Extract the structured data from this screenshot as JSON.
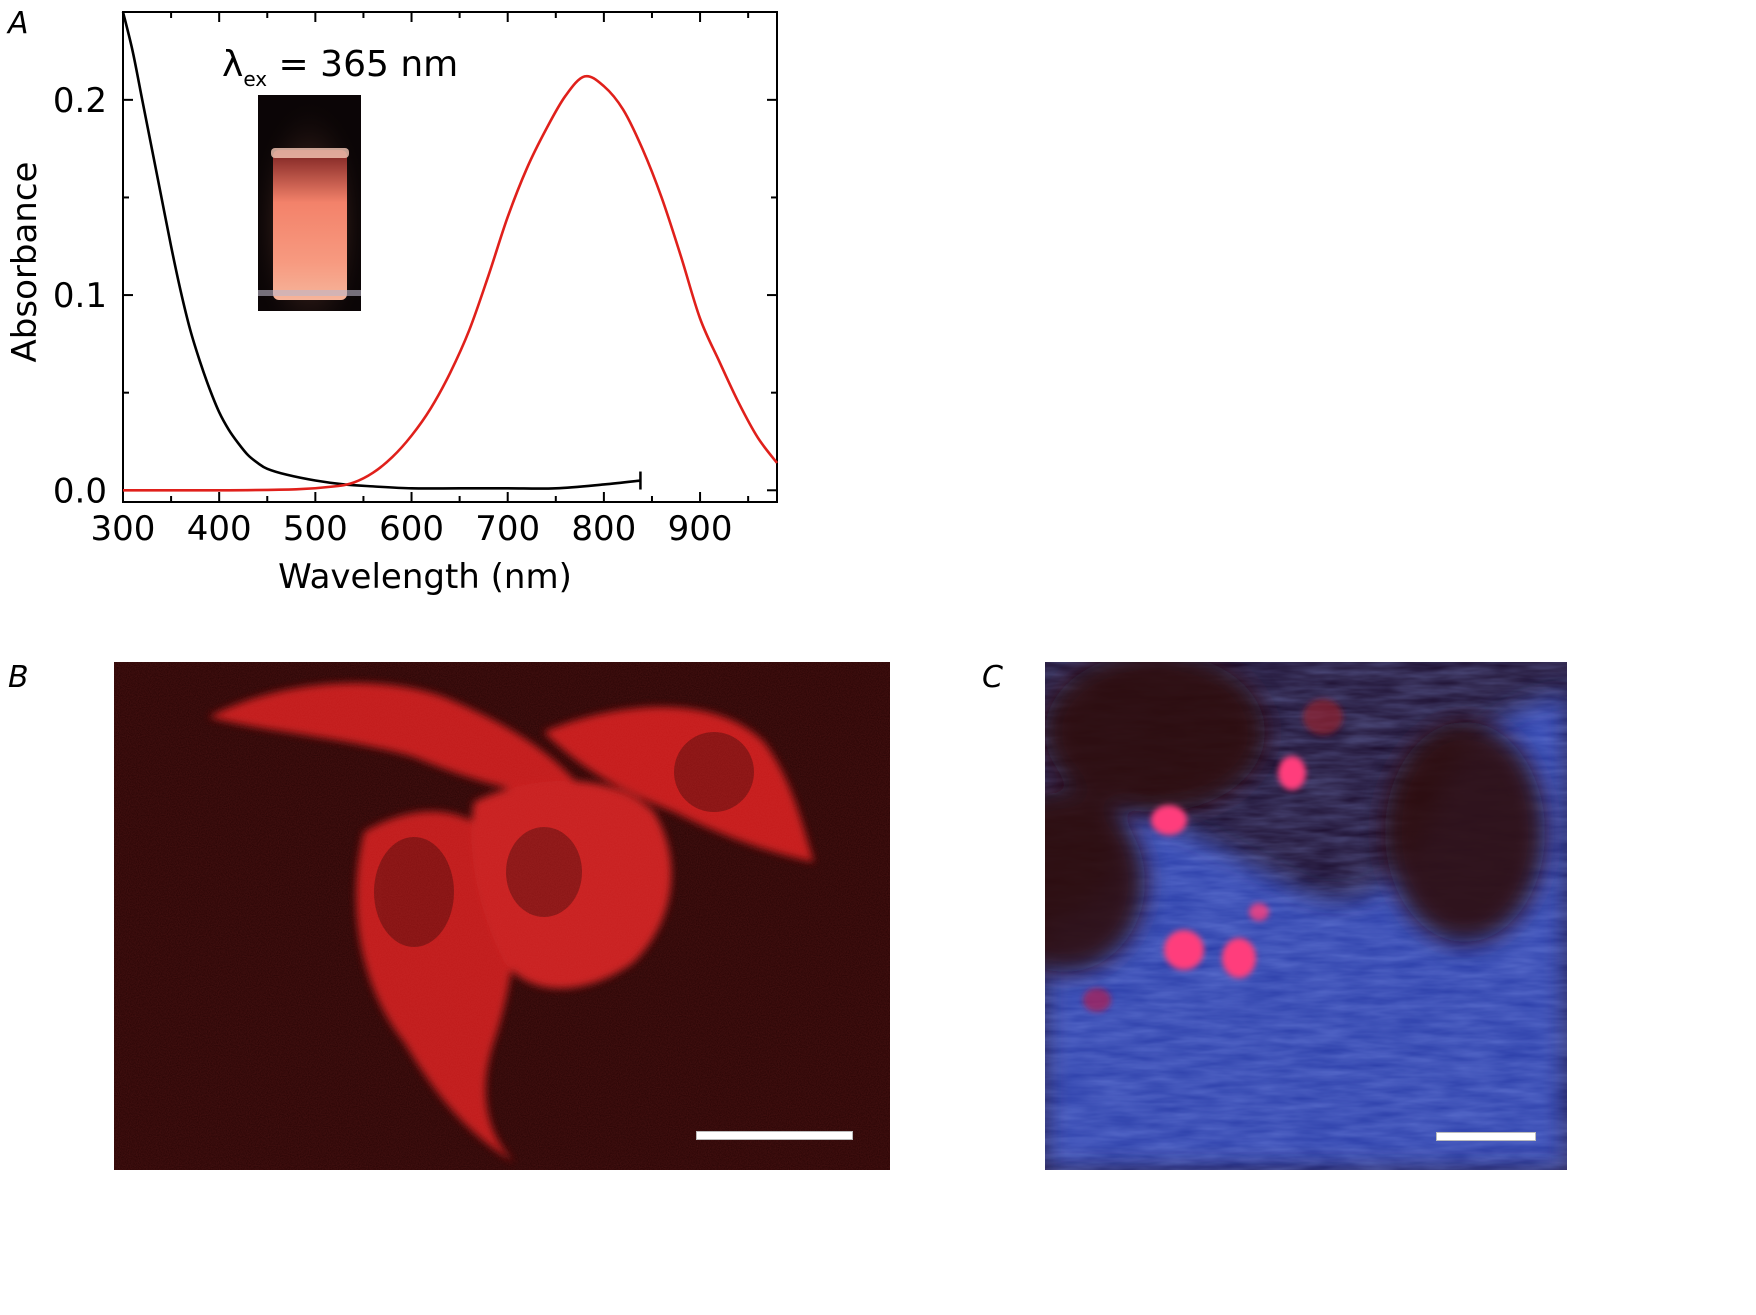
{
  "panels": {
    "a_label": "A",
    "b_label": "B",
    "c_label": "C"
  },
  "inset": {
    "lambda": "λ",
    "subscript": "ex",
    "rest": " = 365 nm"
  },
  "colors": {
    "absorbance": "#000000",
    "emission": "#e0201b",
    "micro_b_bg": "#2a0505",
    "micro_b_cells": "#d81e1e",
    "micro_c_bg": "#1c0a24",
    "micro_c_blue": "#3a5ad8",
    "micro_c_pink": "#ff3a7a"
  },
  "chart_data": {
    "type": "line",
    "title": "",
    "xlabel": "Wavelength (nm)",
    "ylabel": "Absorbance",
    "xlim": [
      300,
      980
    ],
    "ylim": [
      -0.006,
      0.245
    ],
    "xticks": [
      300,
      400,
      500,
      600,
      700,
      800,
      900
    ],
    "xtick_labels": [
      "300",
      "400",
      "500",
      "600",
      "700",
      "800",
      "900"
    ],
    "yticks": [
      0.0,
      0.1,
      0.2
    ],
    "ytick_labels": [
      "0.0",
      "0.1",
      "0.2"
    ],
    "grid": false,
    "series": [
      {
        "color": "#000000",
        "x": [
          300,
          310,
          320,
          330,
          340,
          350,
          360,
          370,
          380,
          390,
          400,
          410,
          420,
          430,
          440,
          450,
          470,
          500,
          530,
          560,
          600,
          650,
          700,
          750,
          800,
          838
        ],
        "y": [
          0.245,
          0.225,
          0.2,
          0.175,
          0.15,
          0.125,
          0.102,
          0.082,
          0.066,
          0.052,
          0.04,
          0.031,
          0.024,
          0.018,
          0.014,
          0.011,
          0.008,
          0.005,
          0.003,
          0.002,
          0.001,
          0.001,
          0.001,
          0.001,
          0.003,
          0.005
        ]
      },
      {
        "color": "#e0201b",
        "x": [
          300,
          400,
          480,
          520,
          540,
          560,
          580,
          600,
          620,
          640,
          660,
          680,
          700,
          720,
          740,
          760,
          780,
          800,
          820,
          840,
          860,
          880,
          900,
          920,
          940,
          960,
          980
        ],
        "y": [
          0.0,
          0.0,
          0.0005,
          0.002,
          0.004,
          0.009,
          0.017,
          0.028,
          0.042,
          0.06,
          0.082,
          0.11,
          0.14,
          0.165,
          0.185,
          0.202,
          0.212,
          0.207,
          0.195,
          0.175,
          0.15,
          0.12,
          0.088,
          0.066,
          0.045,
          0.027,
          0.014
        ]
      }
    ],
    "end_marker": {
      "x": 838,
      "y": 0.005
    }
  }
}
